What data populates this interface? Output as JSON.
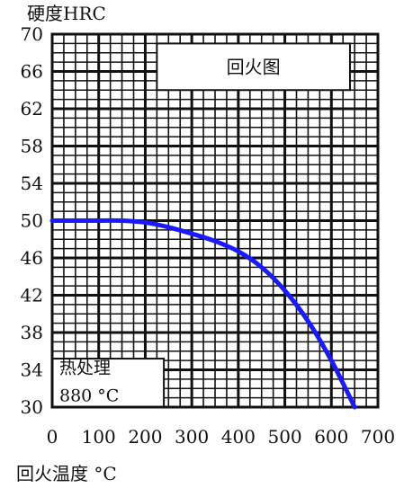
{
  "chart_data": {
    "type": "line",
    "title": "回火图",
    "ylabel": "硬度HRC",
    "xlabel": "回火温度 °C",
    "xlim": [
      0,
      700
    ],
    "ylim": [
      30,
      70
    ],
    "x_ticks": [
      0,
      100,
      200,
      300,
      400,
      500,
      600,
      700
    ],
    "y_ticks": [
      30,
      34,
      38,
      42,
      46,
      50,
      54,
      58,
      62,
      66,
      70
    ],
    "grid": true,
    "annotation_line1": "热处理",
    "annotation_line2": "880 °C",
    "series": [
      {
        "color": "#1a1aff",
        "x": [
          0,
          100,
          150,
          200,
          250,
          300,
          350,
          400,
          450,
          500,
          550,
          600,
          650
        ],
        "y": [
          50,
          50,
          50,
          49.8,
          49.3,
          48.6,
          47.8,
          46.7,
          45.0,
          42.5,
          39.2,
          35.0,
          30.0
        ]
      }
    ]
  }
}
